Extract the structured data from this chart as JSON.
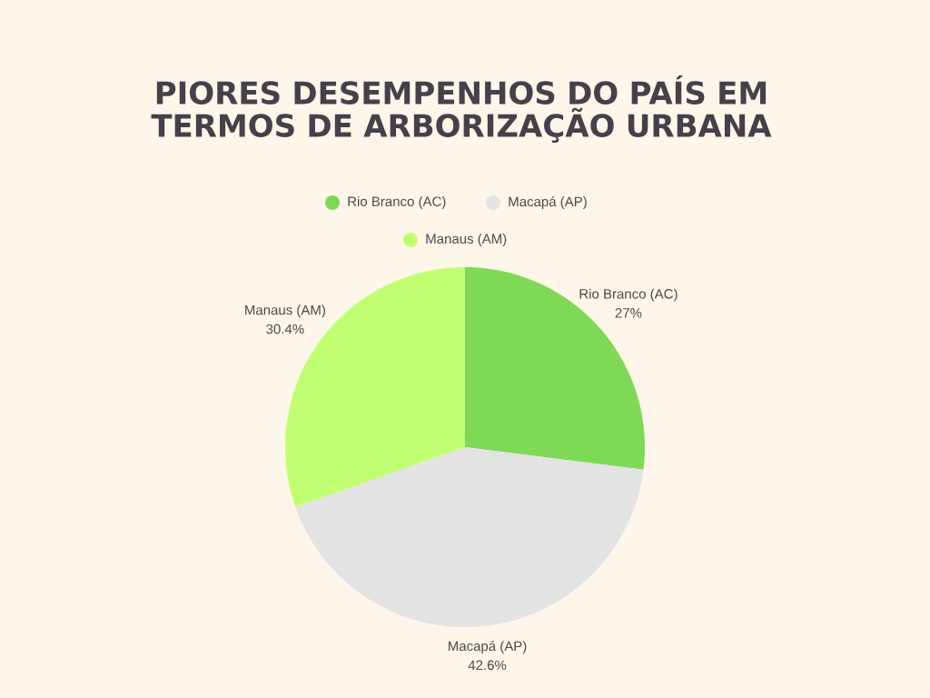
{
  "chart_data": {
    "type": "pie",
    "title": "PIORES DESEMPENHOS DO PAÍS EM TERMOS DE ARBORIZAÇÃO URBANA",
    "categories": [
      "Rio Branco (AC)",
      "Macapá (AP)",
      "Manaus (AM)"
    ],
    "values": [
      27,
      42.6,
      30.4
    ],
    "colors": [
      "#7ed957",
      "#e3e3e3",
      "#c1ff72"
    ],
    "value_labels": [
      "27%",
      "42.6%",
      "30.4%"
    ],
    "legend": "top"
  }
}
